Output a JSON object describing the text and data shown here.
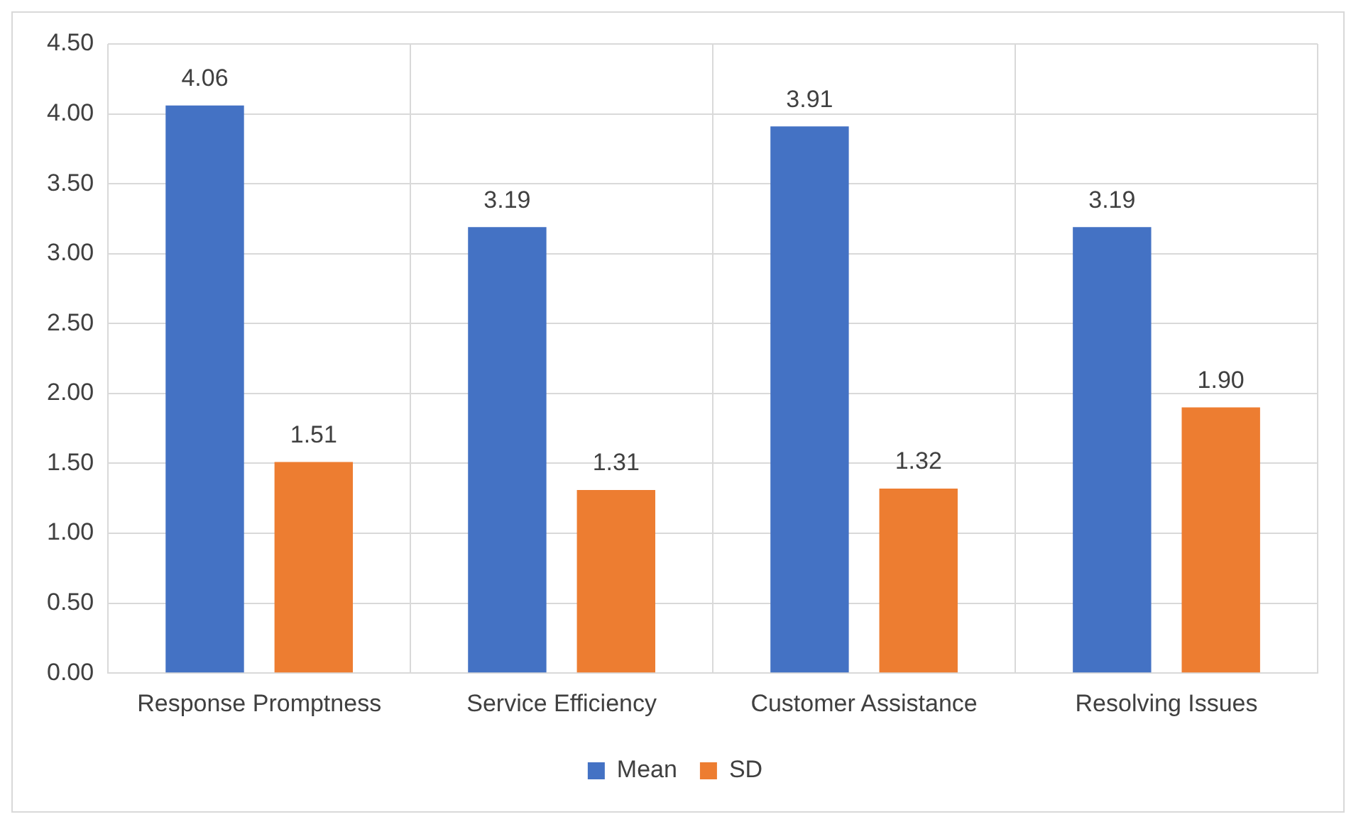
{
  "chart_data": {
    "type": "bar",
    "categories": [
      "Response Promptness",
      "Service Efficiency",
      "Customer Assistance",
      "Resolving Issues"
    ],
    "series": [
      {
        "name": "Mean",
        "color": "#4472c4",
        "values": [
          4.06,
          3.19,
          3.91,
          3.19
        ],
        "value_labels": [
          "4.06",
          "3.19",
          "3.91",
          "3.19"
        ]
      },
      {
        "name": "SD",
        "color": "#ed7d31",
        "values": [
          1.51,
          1.31,
          1.32,
          1.9
        ],
        "value_labels": [
          "1.51",
          "1.31",
          "1.32",
          "1.90"
        ]
      }
    ],
    "ylim": [
      0,
      4.5
    ],
    "yticks": [
      {
        "value": 0,
        "label": "0.00"
      },
      {
        "value": 0.5,
        "label": "0.50"
      },
      {
        "value": 1,
        "label": "1.00"
      },
      {
        "value": 1.5,
        "label": "1.50"
      },
      {
        "value": 2,
        "label": "2.00"
      },
      {
        "value": 2.5,
        "label": "2.50"
      },
      {
        "value": 3,
        "label": "3.00"
      },
      {
        "value": 3.5,
        "label": "3.50"
      },
      {
        "value": 4,
        "label": "4.00"
      },
      {
        "value": 4.5,
        "label": "4.50"
      }
    ],
    "grid": true,
    "legend": "bottom"
  }
}
